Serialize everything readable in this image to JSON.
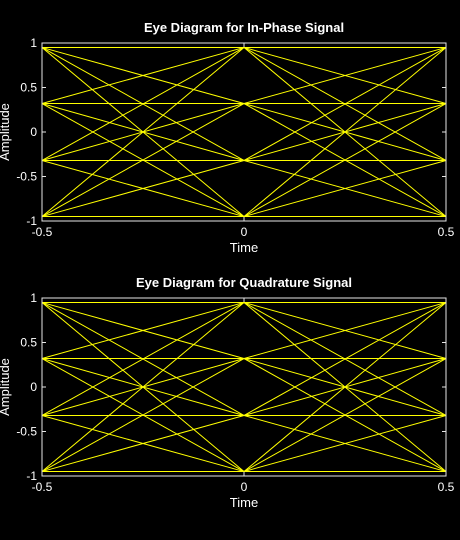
{
  "colors": {
    "background": "#000000",
    "axes": "#e6e6e6",
    "text": "#ffffff",
    "trace": "#ffff00"
  },
  "chart_data": [
    {
      "type": "line",
      "title": "Eye Diagram for In-Phase Signal",
      "xlabel": "Time",
      "ylabel": "Amplitude",
      "xlim": [
        -0.5,
        0.5
      ],
      "ylim": [
        -1,
        1
      ],
      "xticks": [
        "-0.5",
        "0",
        "0.5"
      ],
      "yticks": [
        "1",
        "0.5",
        "0",
        "-0.5",
        "-1"
      ],
      "grid": false,
      "levels": [
        -0.95,
        -0.32,
        0.32,
        0.95
      ],
      "x": [
        -0.5,
        0,
        0.5
      ],
      "description_series": "all transitions between the four amplitude levels"
    },
    {
      "type": "line",
      "title": "Eye Diagram for Quadrature Signal",
      "xlabel": "Time",
      "ylabel": "Amplitude",
      "xlim": [
        -0.5,
        0.5
      ],
      "ylim": [
        -1,
        1
      ],
      "xticks": [
        "-0.5",
        "0",
        "0.5"
      ],
      "yticks": [
        "1",
        "0.5",
        "0",
        "-0.5",
        "-1"
      ],
      "grid": false,
      "levels": [
        -0.95,
        -0.32,
        0.32,
        0.95
      ],
      "x": [
        -0.5,
        0,
        0.5
      ]
    }
  ]
}
